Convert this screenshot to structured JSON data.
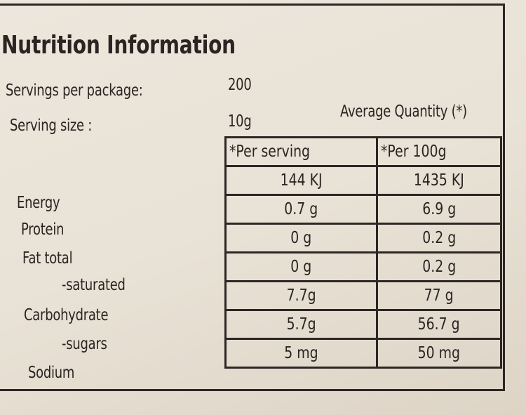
{
  "title": "Nutrition Information",
  "servings_per_package": {
    "label": "Servings per package:",
    "value": "200"
  },
  "serving_size": {
    "label": "Serving size :",
    "value": "10g"
  },
  "table": {
    "caption": "Average Quantity (*)",
    "headers": [
      "*Per serving",
      "*Per 100g"
    ],
    "rows": [
      [
        "Energy",
        "144 KJ",
        "1435 KJ"
      ],
      [
        "Protein",
        "0.7 g",
        "6.9 g"
      ],
      [
        "Fat total",
        "0 g",
        "0.2 g"
      ],
      [
        "-saturated",
        "0 g",
        "0.2 g"
      ],
      [
        "Carbohydrate",
        "7.7g",
        "77 g"
      ],
      [
        "-sugars",
        "5.7g",
        "56.7 g"
      ],
      [
        "Sodium",
        "5 mg",
        "50 mg"
      ]
    ]
  }
}
